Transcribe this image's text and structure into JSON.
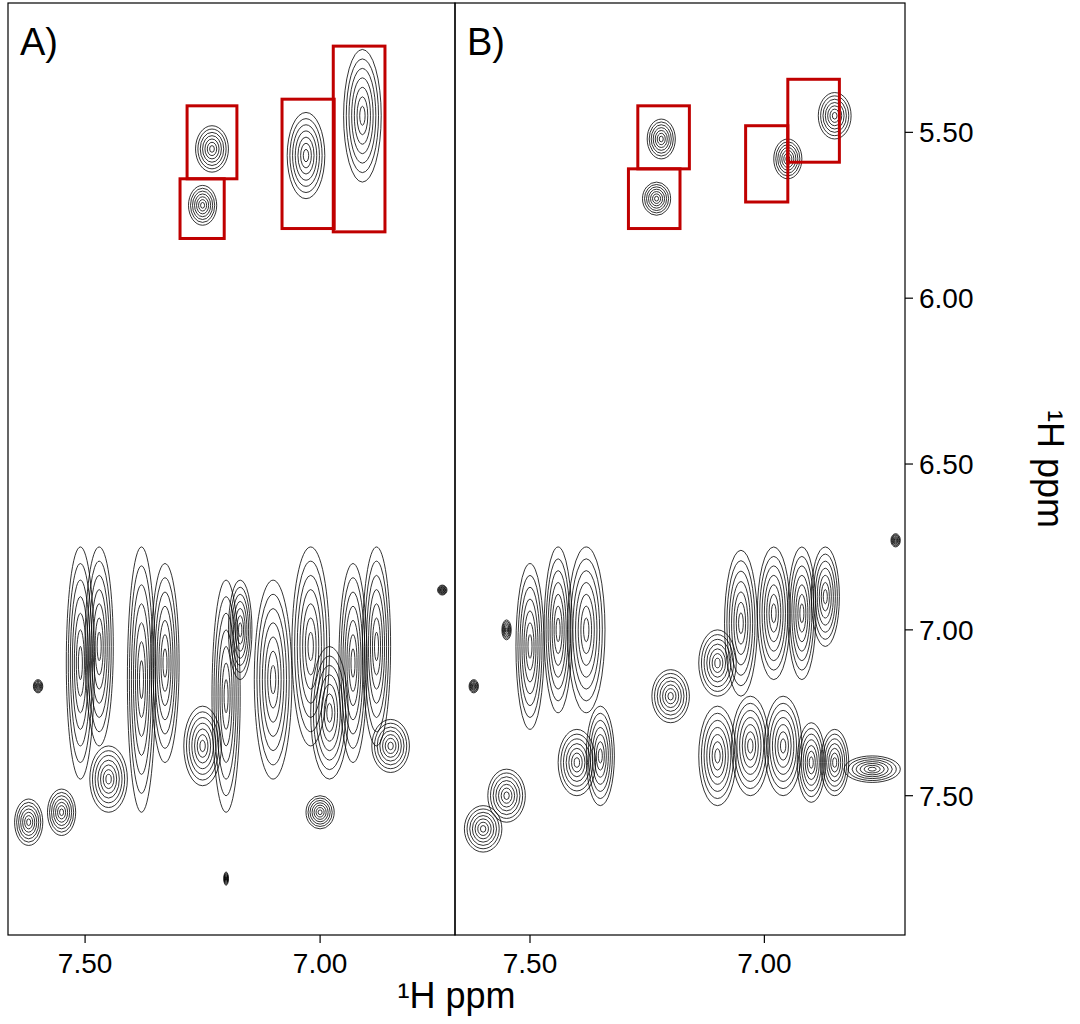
{
  "chart_data": [
    {
      "type": "contour",
      "title": "A)",
      "xlabel": "¹H ppm",
      "color": "#000000",
      "box_color": "#c00000",
      "xlim": [
        7.664,
        6.713
      ],
      "ylim": [
        5.11,
        7.92
      ],
      "xticks": [
        {
          "value": 7.5,
          "label": "7.50"
        },
        {
          "value": 7.0,
          "label": "7.00"
        }
      ],
      "peaks": [
        {
          "x": 7.23,
          "y": 5.55,
          "wx": 0.035,
          "wy": 0.07
        },
        {
          "x": 7.25,
          "y": 5.72,
          "wx": 0.03,
          "wy": 0.06
        },
        {
          "x": 7.03,
          "y": 5.57,
          "wx": 0.04,
          "wy": 0.13
        },
        {
          "x": 6.91,
          "y": 5.45,
          "wx": 0.04,
          "wy": 0.2
        },
        {
          "x": 7.62,
          "y": 7.58,
          "wx": 0.03,
          "wy": 0.07
        },
        {
          "x": 7.6,
          "y": 7.17,
          "wx": 0.01,
          "wy": 0.02
        },
        {
          "x": 7.51,
          "y": 7.1,
          "wx": 0.03,
          "wy": 0.35
        },
        {
          "x": 7.47,
          "y": 7.05,
          "wx": 0.03,
          "wy": 0.3
        },
        {
          "x": 7.38,
          "y": 7.15,
          "wx": 0.03,
          "wy": 0.4
        },
        {
          "x": 7.33,
          "y": 7.1,
          "wx": 0.03,
          "wy": 0.3
        },
        {
          "x": 7.25,
          "y": 7.35,
          "wx": 0.04,
          "wy": 0.12
        },
        {
          "x": 7.2,
          "y": 7.2,
          "wx": 0.03,
          "wy": 0.35
        },
        {
          "x": 7.17,
          "y": 7.0,
          "wx": 0.025,
          "wy": 0.15
        },
        {
          "x": 7.1,
          "y": 7.15,
          "wx": 0.04,
          "wy": 0.3
        },
        {
          "x": 7.02,
          "y": 7.05,
          "wx": 0.04,
          "wy": 0.3
        },
        {
          "x": 6.98,
          "y": 7.25,
          "wx": 0.04,
          "wy": 0.2
        },
        {
          "x": 6.93,
          "y": 7.1,
          "wx": 0.03,
          "wy": 0.3
        },
        {
          "x": 6.88,
          "y": 7.05,
          "wx": 0.03,
          "wy": 0.3
        },
        {
          "x": 6.85,
          "y": 7.35,
          "wx": 0.04,
          "wy": 0.08
        },
        {
          "x": 7.0,
          "y": 7.55,
          "wx": 0.03,
          "wy": 0.05
        },
        {
          "x": 7.45,
          "y": 7.45,
          "wx": 0.04,
          "wy": 0.1
        },
        {
          "x": 7.55,
          "y": 7.55,
          "wx": 0.03,
          "wy": 0.07
        },
        {
          "x": 6.74,
          "y": 6.88,
          "wx": 0.01,
          "wy": 0.015
        },
        {
          "x": 7.2,
          "y": 7.75,
          "wx": 0.005,
          "wy": 0.02
        }
      ],
      "boxes": [
        {
          "x": [
            7.283,
            7.177
          ],
          "y": [
            5.42,
            5.64
          ]
        },
        {
          "x": [
            7.298,
            7.204
          ],
          "y": [
            5.64,
            5.82
          ]
        },
        {
          "x": [
            7.081,
            6.97
          ],
          "y": [
            5.4,
            5.79
          ]
        },
        {
          "x": [
            6.972,
            6.862
          ],
          "y": [
            5.24,
            5.8
          ]
        }
      ]
    },
    {
      "type": "contour",
      "title": "B)",
      "ylabel": "¹H ppm",
      "color": "#000000",
      "box_color": "#c00000",
      "xlim": [
        7.66,
        6.7
      ],
      "ylim": [
        5.11,
        7.92
      ],
      "xticks": [
        {
          "value": 7.5,
          "label": "7.50"
        },
        {
          "value": 7.0,
          "label": "7.00"
        }
      ],
      "yticks": [
        {
          "value": 5.5,
          "label": "5.50"
        },
        {
          "value": 6.0,
          "label": "6.00"
        },
        {
          "value": 6.5,
          "label": "6.50"
        },
        {
          "value": 7.0,
          "label": "7.00"
        },
        {
          "value": 7.5,
          "label": "7.50"
        }
      ],
      "peaks": [
        {
          "x": 7.22,
          "y": 5.52,
          "wx": 0.03,
          "wy": 0.06
        },
        {
          "x": 7.23,
          "y": 5.7,
          "wx": 0.03,
          "wy": 0.05
        },
        {
          "x": 6.95,
          "y": 5.58,
          "wx": 0.03,
          "wy": 0.06
        },
        {
          "x": 6.85,
          "y": 5.45,
          "wx": 0.035,
          "wy": 0.07
        },
        {
          "x": 7.6,
          "y": 7.6,
          "wx": 0.04,
          "wy": 0.07
        },
        {
          "x": 7.55,
          "y": 7.5,
          "wx": 0.04,
          "wy": 0.08
        },
        {
          "x": 7.5,
          "y": 7.05,
          "wx": 0.03,
          "wy": 0.25
        },
        {
          "x": 7.44,
          "y": 7.0,
          "wx": 0.03,
          "wy": 0.25
        },
        {
          "x": 7.38,
          "y": 7.0,
          "wx": 0.04,
          "wy": 0.25
        },
        {
          "x": 7.4,
          "y": 7.4,
          "wx": 0.04,
          "wy": 0.1
        },
        {
          "x": 7.35,
          "y": 7.38,
          "wx": 0.03,
          "wy": 0.15
        },
        {
          "x": 7.2,
          "y": 7.2,
          "wx": 0.04,
          "wy": 0.08
        },
        {
          "x": 7.1,
          "y": 7.1,
          "wx": 0.04,
          "wy": 0.1
        },
        {
          "x": 7.05,
          "y": 6.98,
          "wx": 0.035,
          "wy": 0.22
        },
        {
          "x": 6.98,
          "y": 6.95,
          "wx": 0.035,
          "wy": 0.2
        },
        {
          "x": 6.92,
          "y": 6.95,
          "wx": 0.03,
          "wy": 0.2
        },
        {
          "x": 6.87,
          "y": 6.9,
          "wx": 0.03,
          "wy": 0.15
        },
        {
          "x": 7.1,
          "y": 7.38,
          "wx": 0.04,
          "wy": 0.15
        },
        {
          "x": 7.03,
          "y": 7.35,
          "wx": 0.04,
          "wy": 0.15
        },
        {
          "x": 6.96,
          "y": 7.35,
          "wx": 0.04,
          "wy": 0.15
        },
        {
          "x": 6.9,
          "y": 7.4,
          "wx": 0.03,
          "wy": 0.12
        },
        {
          "x": 6.85,
          "y": 7.4,
          "wx": 0.03,
          "wy": 0.1
        },
        {
          "x": 6.77,
          "y": 7.42,
          "wx": 0.06,
          "wy": 0.04
        },
        {
          "x": 7.55,
          "y": 7.0,
          "wx": 0.01,
          "wy": 0.03
        },
        {
          "x": 7.62,
          "y": 7.17,
          "wx": 0.01,
          "wy": 0.02
        },
        {
          "x": 6.72,
          "y": 6.73,
          "wx": 0.01,
          "wy": 0.02
        }
      ],
      "boxes": [
        {
          "x": [
            7.27,
            7.16
          ],
          "y": [
            5.42,
            5.61
          ]
        },
        {
          "x": [
            7.29,
            7.18
          ],
          "y": [
            5.61,
            5.79
          ]
        },
        {
          "x": [
            7.04,
            6.95
          ],
          "y": [
            5.48,
            5.71
          ]
        },
        {
          "x": [
            6.95,
            6.84
          ],
          "y": [
            5.34,
            5.59
          ]
        }
      ]
    }
  ]
}
